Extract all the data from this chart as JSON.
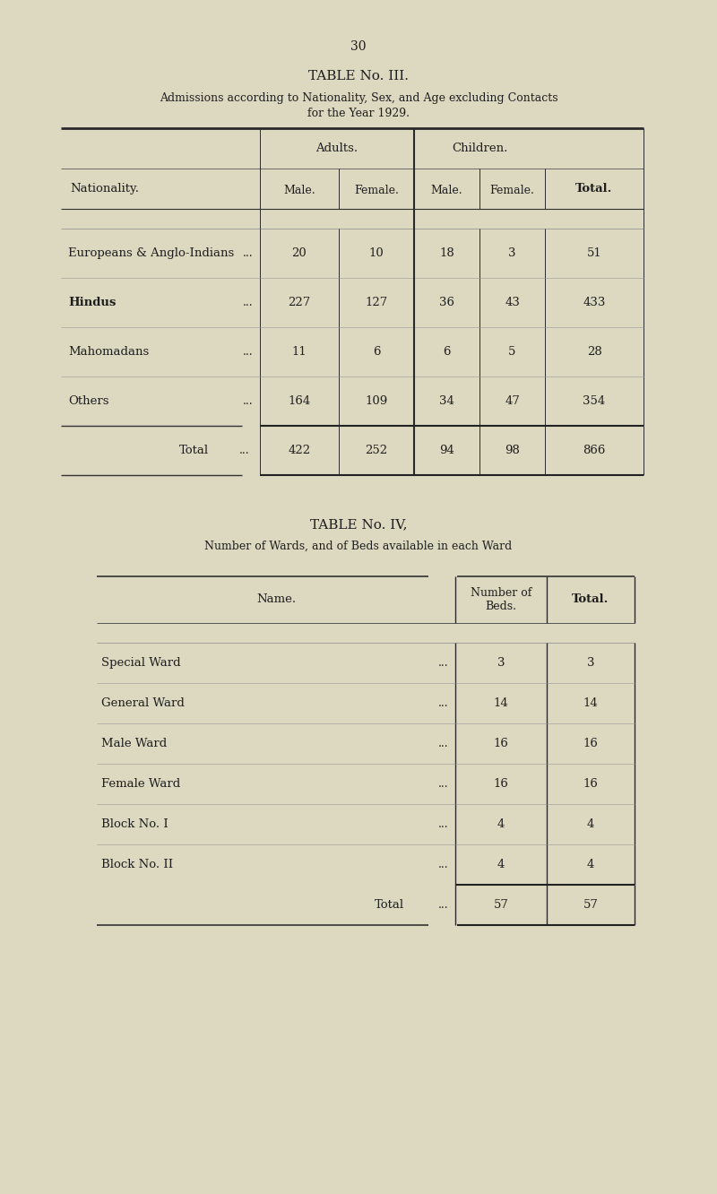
{
  "bg_color": "#ddd8c0",
  "page_number": "30",
  "table3": {
    "title": "TABLE No. III.",
    "subtitle1": "Admissions according to Nationality, Sex, and Age excluding Contacts",
    "subtitle2": "for the Year 1929.",
    "rows": [
      {
        "name": "Europeans & Anglo-Indians",
        "dots": "...",
        "adult_male": "20",
        "adult_female": "10",
        "child_male": "18",
        "child_female": "3",
        "total": "51",
        "bold": false
      },
      {
        "name": "Hindus",
        "dots": "...",
        "adult_male": "227",
        "adult_female": "127",
        "child_male": "36",
        "child_female": "43",
        "total": "433",
        "bold": true
      },
      {
        "name": "Mahomadans",
        "dots": "...",
        "adult_male": "11",
        "adult_female": "6",
        "child_male": "6",
        "child_female": "5",
        "total": "28",
        "bold": false
      },
      {
        "name": "Others",
        "dots": "...",
        "adult_male": "164",
        "adult_female": "109",
        "child_male": "34",
        "child_female": "47",
        "total": "354",
        "bold": false
      }
    ],
    "total_row": {
      "label": "Total",
      "dots": "...",
      "adult_male": "422",
      "adult_female": "252",
      "child_male": "94",
      "child_female": "98",
      "total": "866"
    }
  },
  "table4": {
    "title": "TABLE No. IV,",
    "subtitle": "Number of Wards, and of Beds available in each Ward",
    "rows": [
      {
        "name": "Special Ward",
        "dots": "...",
        "beds": "3",
        "total": "3"
      },
      {
        "name": "General Ward",
        "dots": "...",
        "beds": "14",
        "total": "14"
      },
      {
        "name": "Male Ward",
        "dots": "...",
        "beds": "16",
        "total": "16"
      },
      {
        "name": "Female Ward",
        "dots": "...",
        "beds": "16",
        "total": "16"
      },
      {
        "name": "Block No. I",
        "dots": "...",
        "beds": "4",
        "total": "4"
      },
      {
        "name": "Block No. II",
        "dots": "...",
        "beds": "4",
        "total": "4"
      }
    ],
    "total_row": {
      "label": "Total",
      "dots": "...",
      "beds": "57",
      "total": "57"
    }
  }
}
